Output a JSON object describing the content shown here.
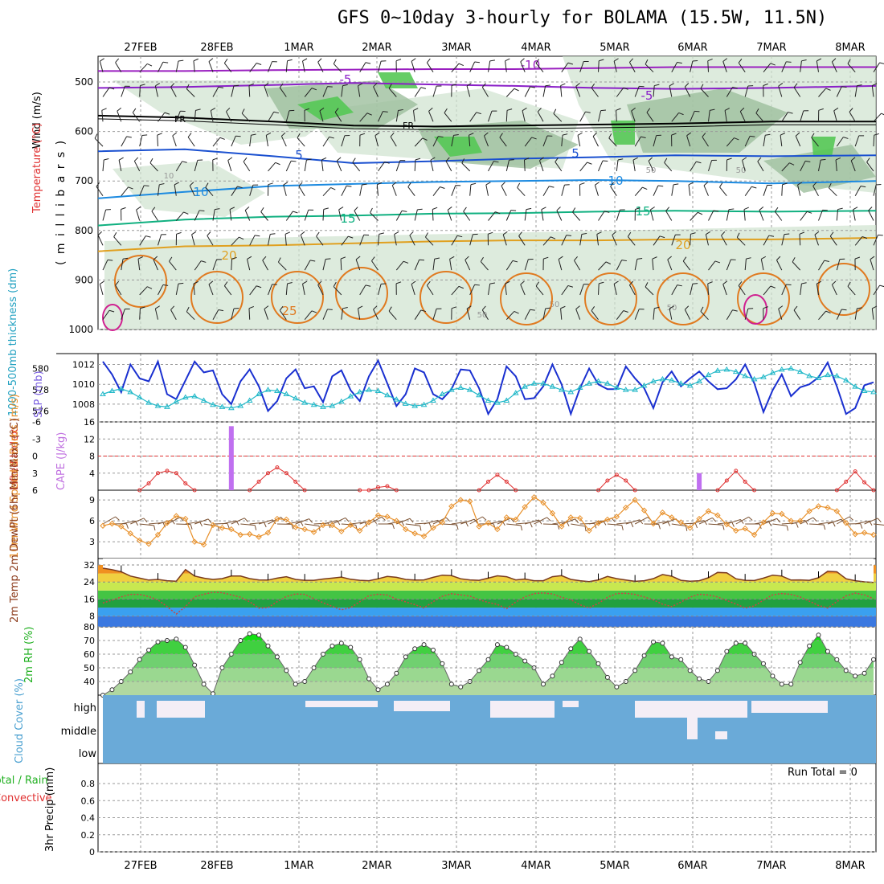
{
  "title": "GFS 0~10day 3-hourly for BOLAMA (15.5W, 11.5N)",
  "dates": [
    "27FEB",
    "28FEB",
    "1MAR",
    "2MAR",
    "3MAR",
    "4MAR",
    "5MAR",
    "6MAR",
    "7MAR",
    "8MAR"
  ],
  "chart_data": [
    {
      "type": "contour",
      "panel": "upper",
      "labels": {
        "wind": "Wind (m/s)",
        "temperature": "Temperature (°C)",
        "rh": "RH (%)",
        "pressure": "( m i l l i b a r s )"
      },
      "ytick_labels": [
        "500",
        "600",
        "700",
        "800",
        "900",
        "1000"
      ],
      "isotherm_labels": [
        "-10",
        "-5",
        "-5",
        "FR",
        "FR",
        "5",
        "5",
        "10",
        "10",
        "15",
        "15",
        "20",
        "20",
        "25"
      ],
      "rh_contour_labels": [
        "10",
        "50",
        "50",
        "50",
        "50",
        "50"
      ],
      "isotherms": [
        {
          "label": "-10",
          "y": [
            478,
            478,
            476,
            475,
            474,
            474,
            472,
            470,
            470,
            470
          ]
        },
        {
          "label": "-5",
          "y": [
            512,
            510,
            506,
            502,
            505,
            508,
            512,
            514,
            512,
            508
          ]
        },
        {
          "label": "FR",
          "y": [
            568,
            572,
            580,
            588,
            590,
            588,
            586,
            584,
            580,
            580
          ]
        },
        {
          "label": "5",
          "y": [
            640,
            636,
            650,
            664,
            660,
            655,
            652,
            648,
            650,
            648
          ]
        },
        {
          "label": "10",
          "y": [
            735,
            722,
            710,
            706,
            702,
            700,
            698,
            700,
            705,
            700
          ]
        },
        {
          "label": "15",
          "y": [
            790,
            778,
            772,
            770,
            766,
            765,
            762,
            760,
            762,
            760
          ]
        },
        {
          "label": "20",
          "y": [
            842,
            832,
            830,
            826,
            822,
            820,
            820,
            818,
            818,
            815
          ]
        }
      ]
    },
    {
      "type": "line",
      "panel": "slp-thickness",
      "ylabel_left": "1000-500mb thickness (dm)",
      "ylabel_right": "SLP (mb)",
      "left_ticks": [
        "580",
        "578",
        "576"
      ],
      "right_ticks": [
        "1012",
        "1010",
        "1008"
      ],
      "series": [
        {
          "name": "SLP",
          "color": "#1a30d0",
          "values": [
            1012.3,
            1011.0,
            1009.2,
            1012.0,
            1010.6,
            1010.3,
            1012.3,
            1009.0,
            1008.5,
            1010.4,
            1012.3,
            1011.2,
            1011.4,
            1009.0,
            1008.0,
            1010.3,
            1011.5,
            1009.8,
            1007.3,
            1008.3,
            1010.6,
            1011.5,
            1009.6,
            1009.8,
            1008.2,
            1010.8,
            1011.4,
            1009.4,
            1008.3,
            1010.8,
            1012.4,
            1010.1,
            1007.8,
            1009.0,
            1011.6,
            1011.2,
            1009.0,
            1008.5,
            1009.5,
            1011.5,
            1011.4,
            1009.6,
            1007.0,
            1008.5,
            1011.8,
            1010.8,
            1008.5,
            1008.6,
            1009.8,
            1012.0,
            1010.0,
            1007.0,
            1009.6,
            1011.6,
            1010.0,
            1009.5,
            1009.5,
            1011.8,
            1010.6,
            1009.6,
            1007.6,
            1010.2,
            1011.3,
            1009.8,
            1010.6,
            1011.3,
            1010.3,
            1009.5,
            1009.6,
            1010.5,
            1012.0,
            1010.1,
            1007.2,
            1009.4,
            1011.0,
            1008.8,
            1009.7,
            1010.0,
            1010.7,
            1012.2,
            1009.8,
            1007.0,
            1007.6,
            1009.9,
            1010.2
          ]
        },
        {
          "name": "Thickness",
          "color": "#20b8c8",
          "values": [
            577.6,
            577.9,
            578.1,
            577.8,
            577.3,
            576.8,
            576.5,
            576.4,
            576.9,
            577.3,
            577.4,
            577.0,
            576.6,
            576.4,
            576.3,
            576.5,
            577.0,
            577.6,
            578.0,
            577.9,
            577.6,
            577.2,
            576.8,
            576.6,
            576.4,
            576.5,
            576.9,
            577.4,
            577.8,
            578.0,
            577.9,
            577.5,
            577.1,
            576.7,
            576.5,
            576.6,
            577.0,
            577.6,
            578.0,
            578.2,
            578.0,
            577.5,
            577.0,
            576.8,
            577.0,
            577.7,
            578.3,
            578.6,
            578.6,
            578.3,
            578.0,
            577.8,
            578.2,
            578.6,
            578.8,
            578.6,
            578.2,
            578.0,
            578.0,
            578.4,
            578.8,
            579.0,
            578.9,
            578.6,
            578.4,
            578.8,
            579.4,
            579.8,
            579.9,
            579.7,
            579.3,
            579.0,
            579.2,
            579.6,
            579.9,
            580.0,
            579.7,
            579.3,
            579.1,
            579.4,
            579.3,
            578.9,
            578.3,
            577.9,
            577.8
          ]
        }
      ]
    },
    {
      "type": "line",
      "panel": "stability",
      "ylabel_left": "Lifted Index",
      "ylabel_right": "CAPE (J/kg)",
      "left_ticks": [
        "-6",
        "-3",
        "0",
        "3",
        "6"
      ],
      "right_ticks": [
        "16",
        "12",
        "8",
        "4"
      ],
      "bars": [
        {
          "x": 14.0,
          "cape": 15
        },
        {
          "x": 65.0,
          "cape": 4
        }
      ],
      "lifted_index": [
        null,
        null,
        null,
        null,
        6,
        4.8,
        3,
        2.6,
        3,
        4.8,
        6,
        null,
        null,
        null,
        null,
        null,
        6,
        4.5,
        3,
        2,
        3,
        4.5,
        6,
        null,
        null,
        null,
        null,
        null,
        6,
        6,
        5.5,
        5.3,
        6,
        null,
        null,
        null,
        null,
        null,
        null,
        null,
        null,
        6,
        4.5,
        3.3,
        4.5,
        6,
        null,
        null,
        null,
        null,
        null,
        null,
        null,
        null,
        6,
        4.3,
        3.3,
        4.3,
        6,
        null,
        null,
        null,
        null,
        null,
        null,
        null,
        null,
        6,
        4.3,
        2.6,
        4.5,
        6,
        null,
        null,
        null,
        null,
        null,
        null,
        null,
        null,
        6,
        4.5,
        2.7,
        4.6,
        6,
        null,
        null
      ]
    },
    {
      "type": "line",
      "panel": "wind10m",
      "ylabel": "10m Wind Speed & Barbs (m/s)",
      "yticks": [
        "9",
        "6",
        "3"
      ],
      "series": [
        {
          "name": "10m Wind Speed",
          "color": "#e8902a",
          "values": [
            5.3,
            5.6,
            5.2,
            4.2,
            3.2,
            2.7,
            4.0,
            5.7,
            6.7,
            6.3,
            3.0,
            2.6,
            5.4,
            5.0,
            4.8,
            4.0,
            4.1,
            3.7,
            4.3,
            6.3,
            6.2,
            5.1,
            4.8,
            4.4,
            5.4,
            5.4,
            4.5,
            5.4,
            4.6,
            5.8,
            6.8,
            6.6,
            6.0,
            4.8,
            4.2,
            3.8,
            5.0,
            5.8,
            8.1,
            9.0,
            8.8,
            5.2,
            5.7,
            4.8,
            6.5,
            6.2,
            8.0,
            9.4,
            8.6,
            7.1,
            5.2,
            6.5,
            6.4,
            4.6,
            5.7,
            6.2,
            6.6,
            7.9,
            9.0,
            7.5,
            5.6,
            7.2,
            6.5,
            5.8,
            5.0,
            6.3,
            7.4,
            6.8,
            5.5,
            4.6,
            4.9,
            4.0,
            5.8,
            7.1,
            7.0,
            6.0,
            6.0,
            7.4,
            8.1,
            7.9,
            7.4,
            5.7,
            4.1,
            4.3,
            4.0
          ]
        }
      ]
    },
    {
      "type": "line",
      "panel": "temperature",
      "ylabel": "2m Temp 2m DewPt (6hr Min/Max) (°C)",
      "yticks": [
        "32",
        "24",
        "16",
        "8"
      ],
      "series": [
        {
          "name": "2m Temp",
          "color": "#7a3a1e",
          "values": [
            30.5,
            29.8,
            28.8,
            26.8,
            25.8,
            24.9,
            25.2,
            24.6,
            24.4,
            29.8,
            26.8,
            25.8,
            25.2,
            25.6,
            26.8,
            26.8,
            25.6,
            25.0,
            24.9,
            25.8,
            26.5,
            25.2,
            24.8,
            24.8,
            25.4,
            25.8,
            26.3,
            25.3,
            24.8,
            24.6,
            25.5,
            26.6,
            26.2,
            25.2,
            24.9,
            25.0,
            26.2,
            27.2,
            27.0,
            25.5,
            25.0,
            24.8,
            25.8,
            26.9,
            26.5,
            25.0,
            25.4,
            24.6,
            24.6,
            26.5,
            27.0,
            25.2,
            24.6,
            24.2,
            25.0,
            26.6,
            25.6,
            24.9,
            24.3,
            24.6,
            25.6,
            27.5,
            26.7,
            24.8,
            24.4,
            24.6,
            26.0,
            28.5,
            28.3,
            25.5,
            24.8,
            24.7,
            25.8,
            27.2,
            26.8,
            24.9,
            25.0,
            24.8,
            26.0,
            29.0,
            28.8,
            25.5,
            24.6,
            24.1,
            23.8
          ]
        },
        {
          "name": "2m DewPt",
          "color": "#c44",
          "values": [
            14.2,
            15.5,
            17.0,
            18.2,
            18.2,
            17.2,
            15.6,
            12.5,
            9.0,
            12.5,
            17.0,
            18.3,
            19.2,
            19.0,
            18.0,
            16.9,
            14.7,
            11.8,
            12.0,
            14.8,
            17.2,
            18.4,
            18.2,
            16.2,
            14.3,
            12.6,
            11.0,
            12.0,
            14.8,
            17.6,
            18.3,
            17.9,
            16.0,
            14.7,
            13.4,
            11.9,
            14.8,
            17.3,
            18.5,
            18.0,
            17.4,
            15.7,
            14.4,
            13.5,
            11.5,
            14.6,
            17.0,
            18.6,
            18.9,
            18.4,
            16.8,
            15.7,
            13.3,
            11.9,
            14.0,
            16.8,
            18.6,
            18.7,
            18.2,
            17.0,
            15.6,
            13.6,
            12.5,
            14.6,
            16.9,
            18.3,
            17.9,
            17.0,
            15.3,
            13.7,
            11.8,
            12.8,
            15.5,
            18.0,
            18.6,
            18.2,
            17.0,
            15.0,
            13.0,
            11.8,
            14.8,
            17.5,
            18.8,
            18.0,
            16.2
          ]
        }
      ]
    },
    {
      "type": "area",
      "panel": "rh2m",
      "ylabel": "2m RH (%)",
      "yticks": [
        "80",
        "70",
        "60",
        "50",
        "40"
      ],
      "series": [
        {
          "name": "2m RH",
          "color": "#20d020",
          "values": [
            30,
            34,
            40,
            47,
            56,
            63,
            69,
            70,
            71,
            65,
            52,
            38,
            31,
            50,
            60,
            70,
            75,
            74,
            66,
            58,
            48,
            38,
            40,
            50,
            60,
            66,
            68,
            65,
            56,
            42,
            34,
            38,
            46,
            58,
            64,
            67,
            63,
            53,
            38,
            36,
            40,
            48,
            56,
            67,
            65,
            60,
            55,
            50,
            38,
            44,
            54,
            64,
            71,
            62,
            53,
            43,
            36,
            40,
            48,
            59,
            69,
            68,
            58,
            56,
            48,
            42,
            40,
            48,
            62,
            68,
            68,
            60,
            53,
            44,
            38,
            38,
            54,
            66,
            74,
            62,
            56,
            48,
            44,
            46,
            56
          ]
        }
      ]
    },
    {
      "type": "step",
      "panel": "cloud",
      "ylabel": "Cloud Cover (%)",
      "ytick_labels": [
        "high",
        "middle",
        "low"
      ]
    },
    {
      "type": "bar",
      "panel": "precip",
      "ylabel_left_1": "Total / Rain",
      "ylabel_left_2": "Convective",
      "ylabel": "3hr Precip (mm)",
      "yticks": [
        "0.8",
        "0.6",
        "0.4",
        "0.2",
        "0"
      ],
      "run_total": "Run Total = 0",
      "values": []
    }
  ]
}
